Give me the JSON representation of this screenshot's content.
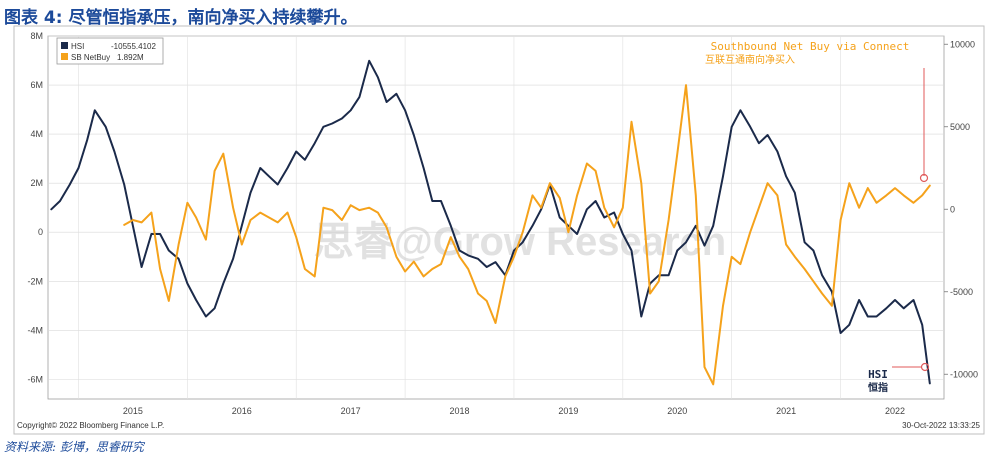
{
  "title": "图表 4: 尽管恒指承压，南向净买入持续攀升。",
  "source": "资料来源: 彭博，思睿研究",
  "footer": {
    "copyright": "Copyright© 2022 Bloomberg Finance L.P.",
    "timestamp": "30-Oct-2022 13:33:25"
  },
  "watermark": "思睿@Grow Research",
  "chart_data": {
    "type": "line",
    "x_range": [
      2014.72,
      2022.95
    ],
    "x_ticks": [
      2015,
      2016,
      2017,
      2018,
      2019,
      2020,
      2021,
      2022
    ],
    "x_tick_labels": [
      "2015",
      "2016",
      "2017",
      "2018",
      "2019",
      "2020",
      "2021",
      "2022"
    ],
    "left_axis": {
      "range": [
        -6.8,
        8
      ],
      "ticks": [
        -6,
        -4,
        -2,
        0,
        2,
        4,
        6,
        8
      ],
      "tick_labels": [
        "-6M",
        "-4M",
        "-2M",
        "0",
        "2M",
        "4M",
        "6M",
        "8M"
      ]
    },
    "right_axis": {
      "range": [
        -11500,
        10500
      ],
      "ticks": [
        -10000,
        -5000,
        0,
        5000,
        10000
      ],
      "tick_labels": [
        "-10000",
        "-5000",
        "0",
        "5000",
        "10000"
      ]
    },
    "legend": {
      "position": "top-left",
      "entries": [
        {
          "name": "HSI",
          "value": "-10555.4102",
          "color": "#1b2a4a"
        },
        {
          "name": "SB NetBuy",
          "value": "1.892M",
          "color": "#f5a21b"
        }
      ]
    },
    "annotations": {
      "southbound_en": "Southbound Net Buy via Connect",
      "southbound_cn": "互联互通南向净买入",
      "hsi_en": "HSI",
      "hsi_cn": "恒指"
    },
    "series": [
      {
        "name": "HSI",
        "axis": "right",
        "color": "#1b2a4a",
        "x": [
          2014.75,
          2014.83,
          2014.92,
          2015.0,
          2015.08,
          2015.15,
          2015.25,
          2015.33,
          2015.42,
          2015.5,
          2015.58,
          2015.67,
          2015.75,
          2015.83,
          2015.92,
          2016.0,
          2016.08,
          2016.17,
          2016.25,
          2016.33,
          2016.42,
          2016.5,
          2016.58,
          2016.67,
          2016.75,
          2016.83,
          2016.92,
          2017.0,
          2017.08,
          2017.17,
          2017.25,
          2017.33,
          2017.42,
          2017.5,
          2017.58,
          2017.67,
          2017.75,
          2017.83,
          2017.92,
          2018.0,
          2018.08,
          2018.17,
          2018.25,
          2018.33,
          2018.42,
          2018.5,
          2018.58,
          2018.67,
          2018.75,
          2018.83,
          2018.92,
          2019.0,
          2019.08,
          2019.17,
          2019.25,
          2019.33,
          2019.42,
          2019.5,
          2019.58,
          2019.67,
          2019.75,
          2019.83,
          2019.92,
          2020.0,
          2020.08,
          2020.17,
          2020.25,
          2020.33,
          2020.42,
          2020.5,
          2020.58,
          2020.67,
          2020.75,
          2020.83,
          2020.92,
          2021.0,
          2021.08,
          2021.17,
          2021.25,
          2021.33,
          2021.42,
          2021.5,
          2021.58,
          2021.67,
          2021.75,
          2021.83,
          2021.92,
          2022.0,
          2022.08,
          2022.17,
          2022.25,
          2022.33,
          2022.42,
          2022.5,
          2022.58,
          2022.67,
          2022.75,
          2022.82
        ],
        "y": [
          0,
          500,
          1500,
          2500,
          4200,
          6000,
          5000,
          3500,
          1500,
          -1000,
          -3500,
          -1500,
          -1500,
          -2500,
          -3000,
          -4500,
          -5500,
          -6500,
          -6000,
          -4500,
          -3000,
          -1000,
          1000,
          2500,
          2000,
          1500,
          2500,
          3500,
          3000,
          4000,
          5000,
          5200,
          5500,
          6000,
          6800,
          9000,
          8000,
          6500,
          7000,
          6000,
          4500,
          2500,
          500,
          500,
          -1000,
          -2500,
          -2800,
          -3000,
          -3500,
          -3200,
          -4000,
          -2500,
          -2000,
          -1000,
          0,
          1500,
          -500,
          -1000,
          -1500,
          0,
          500,
          -500,
          -200,
          -1500,
          -2500,
          -6500,
          -4500,
          -4000,
          -4000,
          -2500,
          -2000,
          -1000,
          -2200,
          -1000,
          2000,
          5000,
          6000,
          5000,
          4000,
          4500,
          3500,
          2000,
          1000,
          -2000,
          -2500,
          -4000,
          -5000,
          -7500,
          -7000,
          -5500,
          -6500,
          -6500,
          -6000,
          -5500,
          -6000,
          -5500,
          -7000,
          -10555
        ]
      },
      {
        "name": "SB NetBuy",
        "axis": "left",
        "color": "#f5a21b",
        "x": [
          2015.42,
          2015.5,
          2015.58,
          2015.67,
          2015.75,
          2015.83,
          2015.92,
          2016.0,
          2016.08,
          2016.17,
          2016.25,
          2016.33,
          2016.42,
          2016.5,
          2016.58,
          2016.67,
          2016.75,
          2016.83,
          2016.92,
          2017.0,
          2017.08,
          2017.17,
          2017.25,
          2017.33,
          2017.42,
          2017.5,
          2017.58,
          2017.67,
          2017.75,
          2017.83,
          2017.92,
          2018.0,
          2018.08,
          2018.17,
          2018.25,
          2018.33,
          2018.42,
          2018.5,
          2018.58,
          2018.67,
          2018.75,
          2018.83,
          2018.92,
          2019.0,
          2019.08,
          2019.17,
          2019.25,
          2019.33,
          2019.42,
          2019.5,
          2019.58,
          2019.67,
          2019.75,
          2019.83,
          2019.92,
          2020.0,
          2020.08,
          2020.17,
          2020.25,
          2020.33,
          2020.42,
          2020.5,
          2020.58,
          2020.67,
          2020.75,
          2020.83,
          2020.92,
          2021.0,
          2021.08,
          2021.17,
          2021.25,
          2021.33,
          2021.42,
          2021.5,
          2021.58,
          2021.67,
          2021.75,
          2021.83,
          2021.92,
          2022.0,
          2022.08,
          2022.17,
          2022.25,
          2022.33,
          2022.42,
          2022.5,
          2022.58,
          2022.67,
          2022.75,
          2022.82
        ],
        "y": [
          0.3,
          0.5,
          0.4,
          0.8,
          -1.5,
          -2.8,
          -0.5,
          1.2,
          0.6,
          -0.3,
          2.5,
          3.2,
          1.0,
          -0.5,
          0.5,
          0.8,
          0.6,
          0.4,
          0.8,
          -0.2,
          -1.5,
          -1.8,
          1.0,
          0.9,
          0.5,
          1.1,
          0.9,
          1.0,
          0.8,
          0.2,
          -1.0,
          -1.6,
          -1.2,
          -1.8,
          -1.5,
          -1.3,
          -0.2,
          -1.0,
          -1.5,
          -2.5,
          -2.8,
          -3.7,
          -1.8,
          -1.0,
          0.0,
          1.5,
          1.0,
          2.0,
          1.4,
          0.0,
          1.5,
          2.8,
          2.5,
          1.0,
          0.2,
          1.0,
          4.5,
          2.0,
          -2.5,
          -2.0,
          0.5,
          3.2,
          6.0,
          1.5,
          -5.5,
          -6.2,
          -3.0,
          -1.0,
          -1.3,
          0.0,
          1.0,
          2.0,
          1.5,
          -0.5,
          -1.0,
          -1.5,
          -2.0,
          -2.5,
          -3.0,
          0.5,
          2.0,
          1.0,
          1.8,
          1.2,
          1.5,
          1.8,
          1.5,
          1.2,
          1.5,
          1.9
        ]
      }
    ]
  }
}
